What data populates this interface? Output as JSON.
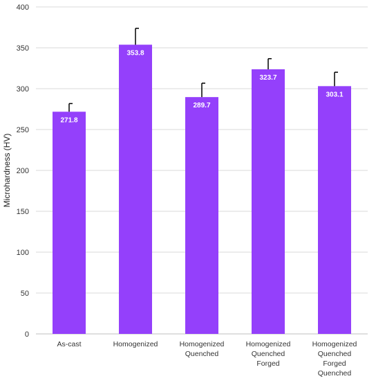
{
  "chart_data": {
    "type": "bar",
    "title": "",
    "xlabel": "",
    "ylabel": "Microhardness (HV)",
    "ylim": [
      0,
      400
    ],
    "yticks": [
      0,
      50,
      100,
      150,
      200,
      250,
      300,
      350,
      400
    ],
    "grid": true,
    "legend": "none",
    "bar_color": "#9440fb",
    "categories": [
      [
        "As-cast"
      ],
      [
        "Homogenized"
      ],
      [
        "Homogenized",
        "Quenched"
      ],
      [
        "Homogenized",
        "Quenched",
        "Forged"
      ],
      [
        "Homogenized",
        "Quenched",
        "Forged",
        "Quenched"
      ]
    ],
    "values": [
      271.8,
      353.8,
      289.7,
      323.7,
      303.1
    ],
    "value_labels": [
      "271.8",
      "353.8",
      "289.7",
      "323.7",
      "303.1"
    ],
    "errors": [
      10,
      20,
      17,
      13,
      17
    ]
  }
}
